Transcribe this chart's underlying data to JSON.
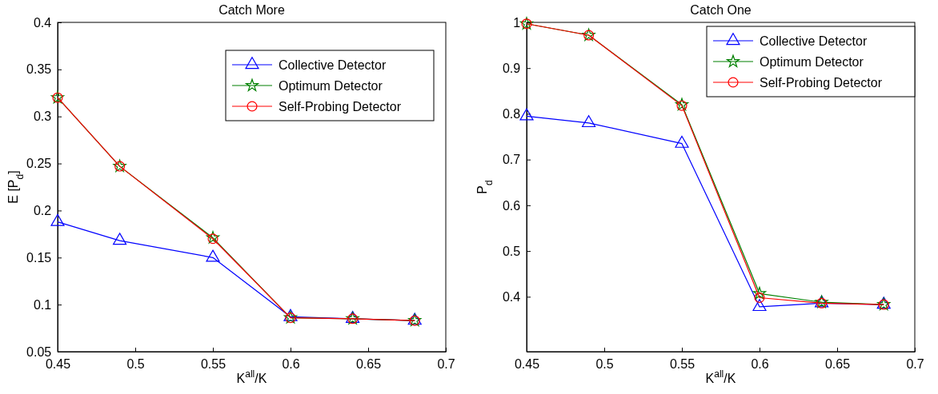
{
  "chart_data": [
    {
      "type": "line",
      "title": "Catch More",
      "xlabel": "K$^{all}$/K",
      "ylabel": "E [P$_{d}$]",
      "x": [
        0.45,
        0.49,
        0.55,
        0.6,
        0.64,
        0.68
      ],
      "xlim": [
        0.45,
        0.7
      ],
      "xticks": [
        0.45,
        0.5,
        0.55,
        0.6,
        0.65,
        0.7
      ],
      "ylim": [
        0.05,
        0.4
      ],
      "yticks": [
        0.05,
        0.1,
        0.15,
        0.2,
        0.25,
        0.3,
        0.35,
        0.4
      ],
      "legend": "top right",
      "grid": false,
      "line_style": "solid",
      "series": [
        {
          "name": "Collective Detector",
          "color": "#0000ff",
          "marker": "triangle",
          "values": [
            0.188,
            0.168,
            0.15,
            0.087,
            0.085,
            0.083
          ]
        },
        {
          "name": "Optimum Detector",
          "color": "#008000",
          "marker": "star",
          "values": [
            0.32,
            0.247,
            0.171,
            0.086,
            0.085,
            0.083
          ]
        },
        {
          "name": "Self-Probing Detector",
          "color": "#ff0000",
          "marker": "circle",
          "values": [
            0.32,
            0.247,
            0.17,
            0.086,
            0.085,
            0.083
          ]
        }
      ]
    },
    {
      "type": "line",
      "title": "Catch One",
      "xlabel": "K$^{all}$/K",
      "ylabel": "P$_{d}$",
      "x": [
        0.45,
        0.49,
        0.55,
        0.6,
        0.64,
        0.68
      ],
      "xlim": [
        0.45,
        0.7
      ],
      "xticks": [
        0.45,
        0.5,
        0.55,
        0.6,
        0.65,
        0.7
      ],
      "ylim": [
        0.28,
        1
      ],
      "yticks": [
        0.4,
        0.5,
        0.6,
        0.7,
        0.8,
        0.9,
        1
      ],
      "legend": "top right",
      "grid": false,
      "line_style": "solid",
      "series": [
        {
          "name": "Collective Detector",
          "color": "#0000ff",
          "marker": "triangle",
          "values": [
            0.795,
            0.78,
            0.735,
            0.378,
            0.386,
            0.383
          ]
        },
        {
          "name": "Optimum Detector",
          "color": "#008000",
          "marker": "star",
          "values": [
            0.997,
            0.972,
            0.82,
            0.407,
            0.388,
            0.383
          ]
        },
        {
          "name": "Self-Probing Detector",
          "color": "#ff0000",
          "marker": "circle",
          "values": [
            0.997,
            0.972,
            0.818,
            0.398,
            0.386,
            0.383
          ]
        }
      ]
    }
  ]
}
